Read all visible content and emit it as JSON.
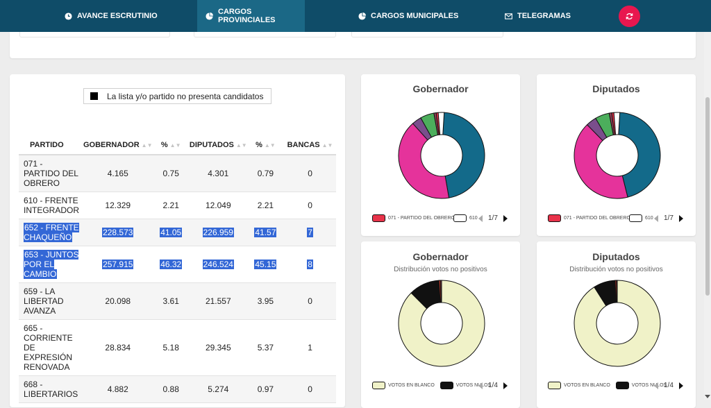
{
  "nav": {
    "items": [
      {
        "label": "AVANCE ESCRUTINIO",
        "icon": "clock-icon"
      },
      {
        "label": "CARGOS PROVINCIALES",
        "icon": "pie-chart-icon",
        "active": true
      },
      {
        "label": "CARGOS MUNICIPALES",
        "icon": "pie-chart-icon"
      },
      {
        "label": "TELEGRAMAS",
        "icon": "envelope-icon"
      }
    ],
    "refresh_icon": "refresh-icon",
    "colors": {
      "bar": "#0f4c68",
      "active": "#1b6886",
      "refresh": "#e8174f"
    }
  },
  "table": {
    "legend": "La lista y/o partido no presenta candidatos",
    "headers": [
      "PARTIDO",
      "GOBERNADOR",
      "%",
      "DIPUTADOS",
      "%",
      "BANCAS"
    ],
    "rows": [
      {
        "party": "071 - PARTIDO DEL OBRERO",
        "gobernador": "4.165",
        "gob_pct": "0.75",
        "diputados": "4.301",
        "dip_pct": "0.79",
        "bancas": "0"
      },
      {
        "party": "610 - FRENTE INTEGRADOR",
        "gobernador": "12.329",
        "gob_pct": "2.21",
        "diputados": "12.049",
        "dip_pct": "2.21",
        "bancas": "0"
      },
      {
        "party": "652 - FRENTE CHAQUEÑO",
        "gobernador": "228.573",
        "gob_pct": "41.05",
        "diputados": "226.959",
        "dip_pct": "41.57",
        "bancas": "7",
        "selected": true
      },
      {
        "party": "653 - JUNTOS POR EL CAMBIO",
        "gobernador": "257.915",
        "gob_pct": "46.32",
        "diputados": "246.524",
        "dip_pct": "45.15",
        "bancas": "8",
        "selected": true
      },
      {
        "party": "659 - LA LIBERTAD AVANZA",
        "gobernador": "20.098",
        "gob_pct": "3.61",
        "diputados": "21.557",
        "dip_pct": "3.95",
        "bancas": "0"
      },
      {
        "party": "665 - CORRIENTE DE EXPRESIÓN RENOVADA",
        "gobernador": "28.834",
        "gob_pct": "5.18",
        "diputados": "29.345",
        "dip_pct": "5.37",
        "bancas": "1"
      },
      {
        "party": "668 - LIBERTARIOS",
        "gobernador": "4.882",
        "gob_pct": "0.88",
        "diputados": "5.274",
        "dip_pct": "0.97",
        "bancas": "0"
      }
    ]
  },
  "chart_data": [
    {
      "type": "pie",
      "title": "Gobernador",
      "subtitle": "",
      "legend": [
        "071 - PARTIDO DEL OBRERO",
        "610"
      ],
      "legend_colors": [
        "#e8334a",
        "#ffffff"
      ],
      "page": "1/7",
      "slices": [
        {
          "value": 46.32,
          "color": "#136a8a"
        },
        {
          "value": 41.05,
          "color": "#e5339b"
        },
        {
          "value": 3.61,
          "color": "#7a4e8c"
        },
        {
          "value": 5.18,
          "color": "#4cae5c"
        },
        {
          "value": 0.88,
          "color": "#8a3f55"
        },
        {
          "value": 0.75,
          "color": "#e8334a"
        },
        {
          "value": 2.21,
          "color": "#ffffff"
        }
      ]
    },
    {
      "type": "pie",
      "title": "Diputados",
      "subtitle": "",
      "legend": [
        "071 - PARTIDO DEL OBRERO",
        "610"
      ],
      "legend_colors": [
        "#e8334a",
        "#ffffff"
      ],
      "page": "1/7",
      "slices": [
        {
          "value": 45.15,
          "color": "#136a8a"
        },
        {
          "value": 41.57,
          "color": "#e5339b"
        },
        {
          "value": 3.95,
          "color": "#7a4e8c"
        },
        {
          "value": 5.37,
          "color": "#4cae5c"
        },
        {
          "value": 0.97,
          "color": "#8a3f55"
        },
        {
          "value": 0.79,
          "color": "#e8334a"
        },
        {
          "value": 2.21,
          "color": "#ffffff"
        }
      ]
    },
    {
      "type": "pie",
      "title": "Gobernador",
      "subtitle": "Distribución votos no positivos",
      "legend": [
        "VOTOS EN BLANCO",
        "VOTOS NULOS"
      ],
      "legend_colors": [
        "#f0f2c8",
        "#111111"
      ],
      "page": "1/4",
      "slices": [
        {
          "value": 87.5,
          "color": "#f0f2c8"
        },
        {
          "value": 11.5,
          "color": "#111111"
        },
        {
          "value": 0.6,
          "color": "#c0392b"
        },
        {
          "value": 0.4,
          "color": "#8a3f55"
        }
      ]
    },
    {
      "type": "pie",
      "title": "Diputados",
      "subtitle": "Distribución votos no positivos",
      "legend": [
        "VOTOS EN BLANCO",
        "VOTOS NULOS"
      ],
      "legend_colors": [
        "#f0f2c8",
        "#111111"
      ],
      "page": "1/4",
      "slices": [
        {
          "value": 91.0,
          "color": "#f0f2c8"
        },
        {
          "value": 8.2,
          "color": "#111111"
        },
        {
          "value": 0.5,
          "color": "#c0392b"
        },
        {
          "value": 0.3,
          "color": "#8a3f55"
        }
      ]
    }
  ]
}
